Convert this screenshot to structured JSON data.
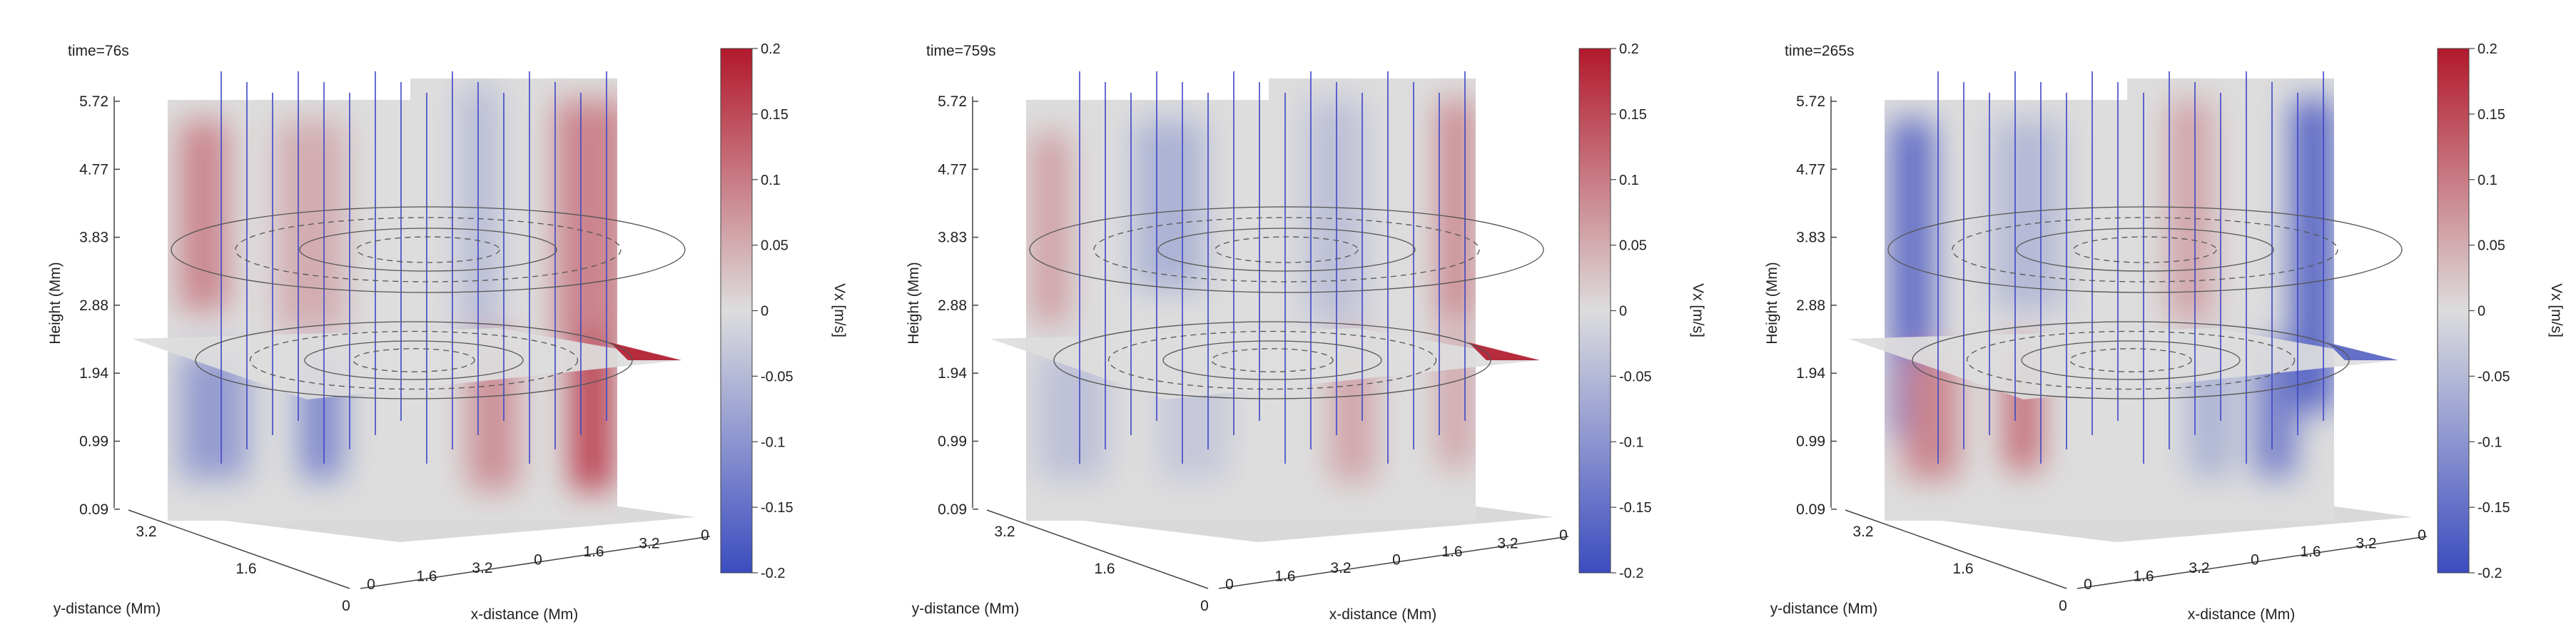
{
  "panels": [
    {
      "time_label": "time=76s",
      "variant": 0
    },
    {
      "time_label": "time=759s",
      "variant": 1
    },
    {
      "time_label": "time=265s",
      "variant": 2
    }
  ],
  "chart_data": {
    "type": "3d-slice-volume",
    "zlabel": "Height (Mm)",
    "xlabel": "x-distance (Mm)",
    "ylabel": "y-distance (Mm)",
    "z_ticks": [
      "5.72",
      "4.77",
      "3.83",
      "2.88",
      "1.94",
      "0.99",
      "0.09"
    ],
    "x_ticks": [
      "0",
      "1.6",
      "3.2",
      "0",
      "1.6",
      "3.2",
      "0"
    ],
    "y_ticks": [
      "3.2",
      "1.6",
      "0"
    ],
    "colorbar": {
      "label": "Vx [m/s]",
      "range": [
        -0.2,
        0.2
      ],
      "ticks": [
        "0.2",
        "0.15",
        "0.1",
        "0.05",
        "0",
        "-0.05",
        "-0.1",
        "-0.15",
        "-0.2"
      ],
      "colormap": "coolwarm",
      "color_max": "#b2182b",
      "color_mid": "#dddddd",
      "color_min": "#3b4cc0"
    }
  }
}
